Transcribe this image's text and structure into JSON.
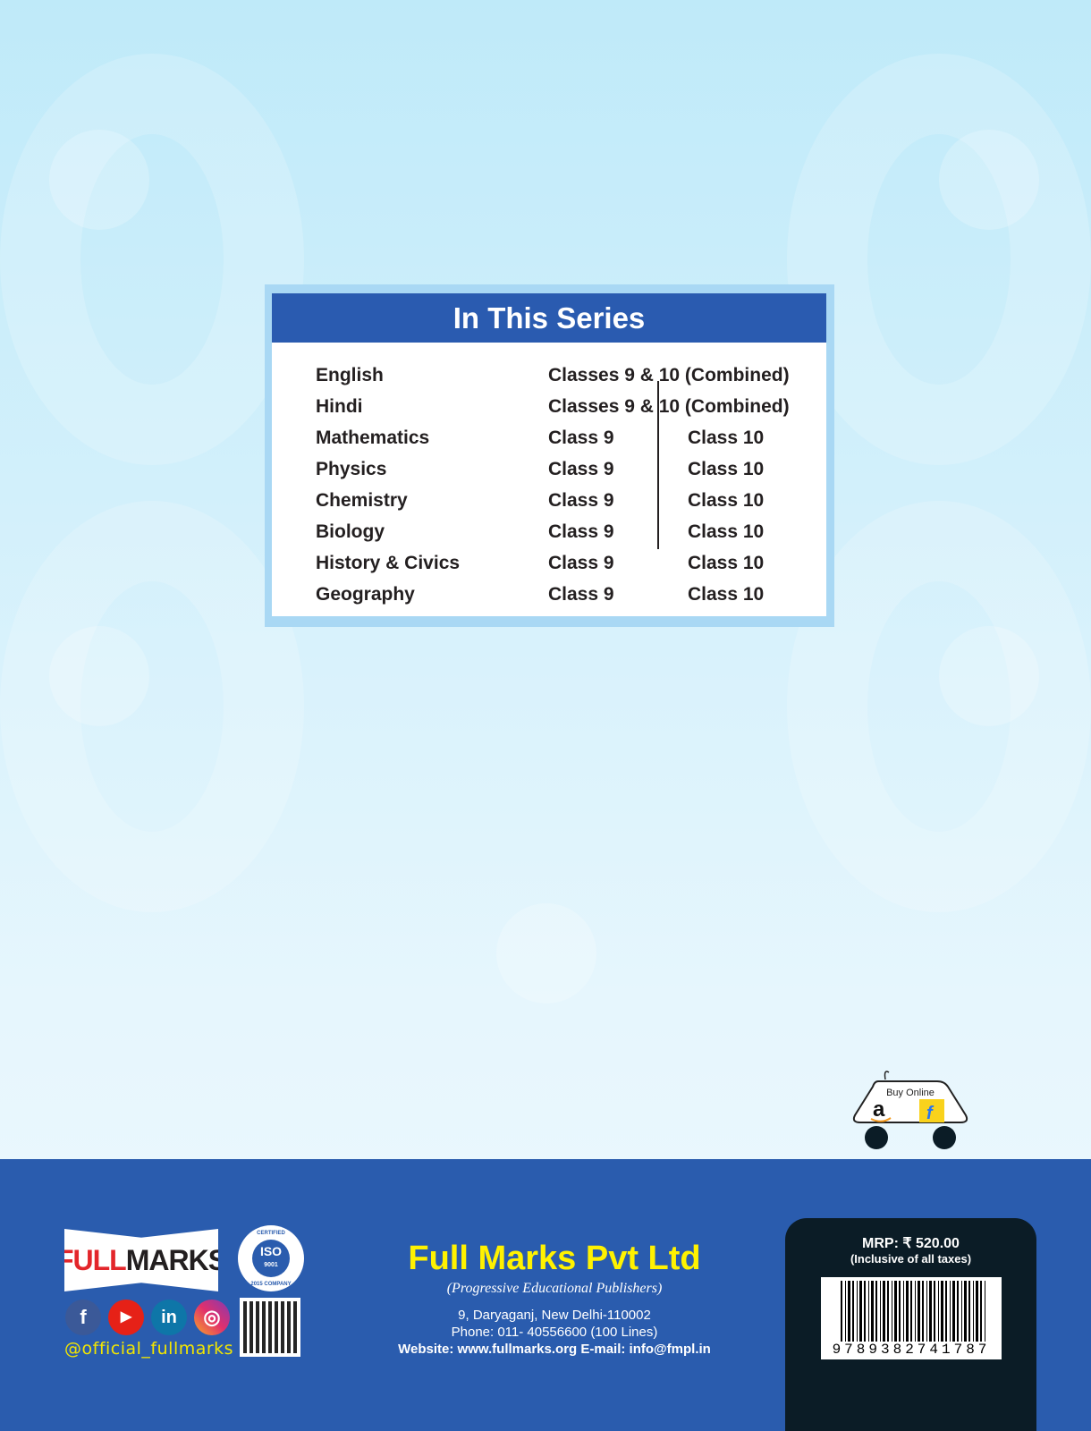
{
  "series_box": {
    "title": "In This Series",
    "rows": [
      {
        "subject": "English",
        "class9": "Classes 9 & 10 (Combined)",
        "class10": ""
      },
      {
        "subject": "Hindi",
        "class9": "Classes 9 & 10 (Combined)",
        "class10": ""
      },
      {
        "subject": "Mathematics",
        "class9": "Class 9",
        "class10": "Class 10"
      },
      {
        "subject": "Physics",
        "class9": "Class 9",
        "class10": "Class 10"
      },
      {
        "subject": "Chemistry",
        "class9": "Class 9",
        "class10": "Class 10"
      },
      {
        "subject": "Biology",
        "class9": "Class 9",
        "class10": "Class 10"
      },
      {
        "subject": "History & Civics",
        "class9": "Class 9",
        "class10": "Class 10"
      },
      {
        "subject": "Geography",
        "class9": "Class 9",
        "class10": "Class 10"
      }
    ]
  },
  "buy_online": {
    "label": "Buy Online",
    "stores": [
      "amazon-icon",
      "flipkart-icon"
    ]
  },
  "footer": {
    "logo": {
      "part1": "FULL",
      "part2": "MARKS"
    },
    "iso": {
      "top": "CERTIFIED",
      "label": "ISO",
      "number": "9001",
      "bottom": "2015 COMPANY"
    },
    "social": [
      "facebook-icon",
      "youtube-icon",
      "linkedin-icon",
      "instagram-icon"
    ],
    "handle": "@official_fullmarks",
    "publisher": "Full Marks Pvt Ltd",
    "tagline": "(Progressive Educational Publishers)",
    "address": "9, Daryaganj, New Delhi-110002",
    "phone": "Phone: 011- 40556600 (100 Lines)",
    "web_email": "Website: www.fullmarks.org  E-mail: info@fmpl.in"
  },
  "price": {
    "mrp": "MRP: ₹ 520.00",
    "note": "(Inclusive of all taxes)",
    "isbn": "9789382741787"
  },
  "colors": {
    "header_blue": "#2a5bb0",
    "footer_blue": "#2a5cae",
    "publisher_yellow": "#fff200",
    "price_box": "#0b1c26"
  }
}
